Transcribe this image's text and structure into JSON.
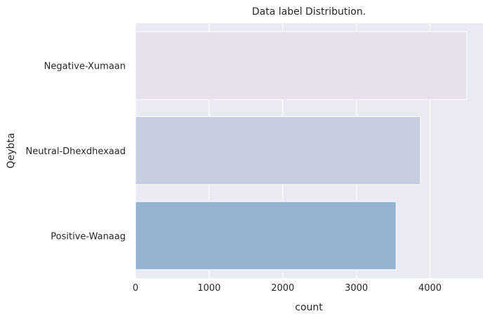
{
  "chart_data": {
    "type": "bar",
    "orientation": "horizontal",
    "title": "Data label Distribution.",
    "xlabel": "count",
    "ylabel": "Qeybta",
    "categories": [
      "Negative-Xumaan",
      "Neutral-Dhexdhexaad",
      "Positive-Wanaag"
    ],
    "values": [
      4500,
      3870,
      3540
    ],
    "xlim": [
      0,
      4720
    ],
    "xticks": [
      0,
      1000,
      2000,
      3000,
      4000
    ],
    "grid": true,
    "legend": "none",
    "colors": {
      "background": "#eaeaf2",
      "grid": "#ffffff",
      "bars": [
        "#e7e1ec",
        "#c8cde0",
        "#94b4cf"
      ]
    }
  }
}
